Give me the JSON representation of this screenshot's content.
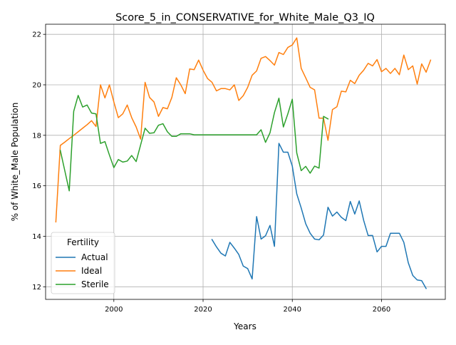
{
  "chart_data": {
    "type": "line",
    "title": "Score_5_in_CONSERVATIVE_for_White_Male_Q3_IQ",
    "xlabel": "Years",
    "ylabel": "% of White_Male Population",
    "xlim": [
      1984.7,
      2074.3
    ],
    "ylim": [
      11.5,
      22.4
    ],
    "xticks": [
      2000,
      2020,
      2040,
      2060
    ],
    "yticks": [
      12,
      14,
      16,
      18,
      20,
      22
    ],
    "grid": true,
    "legend": {
      "title": "Fertility",
      "position": "lower-left"
    },
    "series": [
      {
        "name": "Actual",
        "color": "#1f77b4",
        "points": [
          [
            2022,
            13.87
          ],
          [
            2023,
            13.58
          ],
          [
            2024,
            13.33
          ],
          [
            2025,
            13.22
          ],
          [
            2026,
            13.76
          ],
          [
            2027,
            13.53
          ],
          [
            2028,
            13.28
          ],
          [
            2029,
            12.82
          ],
          [
            2030,
            12.72
          ],
          [
            2031,
            12.31
          ],
          [
            2032,
            14.78
          ],
          [
            2033,
            13.89
          ],
          [
            2034,
            14.02
          ],
          [
            2035,
            14.43
          ],
          [
            2036,
            13.6
          ],
          [
            2037,
            17.68
          ],
          [
            2038,
            17.33
          ],
          [
            2039,
            17.33
          ],
          [
            2040,
            16.78
          ],
          [
            2041,
            15.68
          ],
          [
            2042,
            15.12
          ],
          [
            2043,
            14.5
          ],
          [
            2044,
            14.12
          ],
          [
            2045,
            13.89
          ],
          [
            2046,
            13.86
          ],
          [
            2047,
            14.05
          ],
          [
            2048,
            15.15
          ],
          [
            2049,
            14.8
          ],
          [
            2050,
            14.96
          ],
          [
            2051,
            14.75
          ],
          [
            2052,
            14.62
          ],
          [
            2053,
            15.38
          ],
          [
            2054,
            14.88
          ],
          [
            2055,
            15.4
          ],
          [
            2056,
            14.63
          ],
          [
            2057,
            14.03
          ],
          [
            2058,
            14.03
          ],
          [
            2059,
            13.38
          ],
          [
            2060,
            13.6
          ],
          [
            2061,
            13.6
          ],
          [
            2062,
            14.12
          ],
          [
            2063,
            14.12
          ],
          [
            2064,
            14.12
          ],
          [
            2065,
            13.76
          ],
          [
            2066,
            12.95
          ],
          [
            2067,
            12.45
          ],
          [
            2068,
            12.27
          ],
          [
            2069,
            12.24
          ],
          [
            2070,
            11.93
          ]
        ]
      },
      {
        "name": "Ideal",
        "color": "#ff7f0e",
        "points": [
          [
            1987,
            14.57
          ],
          [
            1988,
            17.6
          ],
          [
            1989,
            17.73
          ],
          [
            1990,
            17.87
          ],
          [
            1991,
            18.0
          ],
          [
            1992,
            18.14
          ],
          [
            1993,
            18.28
          ],
          [
            1994,
            18.42
          ],
          [
            1995,
            18.58
          ],
          [
            1996,
            18.35
          ],
          [
            1997,
            20.0
          ],
          [
            1998,
            19.48
          ],
          [
            1999,
            20.0
          ],
          [
            2000,
            19.32
          ],
          [
            2001,
            18.7
          ],
          [
            2002,
            18.85
          ],
          [
            2003,
            19.2
          ],
          [
            2004,
            18.7
          ],
          [
            2005,
            18.33
          ],
          [
            2006,
            17.85
          ],
          [
            2007,
            20.1
          ],
          [
            2008,
            19.5
          ],
          [
            2009,
            19.32
          ],
          [
            2010,
            18.75
          ],
          [
            2011,
            19.1
          ],
          [
            2012,
            19.05
          ],
          [
            2013,
            19.5
          ],
          [
            2014,
            20.28
          ],
          [
            2015,
            20.0
          ],
          [
            2016,
            19.65
          ],
          [
            2017,
            20.63
          ],
          [
            2018,
            20.6
          ],
          [
            2019,
            20.98
          ],
          [
            2020,
            20.58
          ],
          [
            2021,
            20.25
          ],
          [
            2022,
            20.1
          ],
          [
            2023,
            19.76
          ],
          [
            2024,
            19.85
          ],
          [
            2025,
            19.85
          ],
          [
            2026,
            19.8
          ],
          [
            2027,
            20.0
          ],
          [
            2028,
            19.38
          ],
          [
            2029,
            19.57
          ],
          [
            2030,
            19.9
          ],
          [
            2031,
            20.38
          ],
          [
            2032,
            20.55
          ],
          [
            2033,
            21.05
          ],
          [
            2034,
            21.12
          ],
          [
            2035,
            20.96
          ],
          [
            2036,
            20.78
          ],
          [
            2037,
            21.28
          ],
          [
            2038,
            21.2
          ],
          [
            2039,
            21.48
          ],
          [
            2040,
            21.58
          ],
          [
            2041,
            21.86
          ],
          [
            2042,
            20.65
          ],
          [
            2043,
            20.28
          ],
          [
            2044,
            19.9
          ],
          [
            2045,
            19.8
          ],
          [
            2046,
            18.68
          ],
          [
            2047,
            18.68
          ],
          [
            2048,
            17.8
          ],
          [
            2049,
            19.02
          ],
          [
            2050,
            19.13
          ],
          [
            2051,
            19.75
          ],
          [
            2052,
            19.72
          ],
          [
            2053,
            20.18
          ],
          [
            2054,
            20.05
          ],
          [
            2055,
            20.38
          ],
          [
            2056,
            20.58
          ],
          [
            2057,
            20.85
          ],
          [
            2058,
            20.75
          ],
          [
            2059,
            21.0
          ],
          [
            2060,
            20.52
          ],
          [
            2061,
            20.65
          ],
          [
            2062,
            20.45
          ],
          [
            2063,
            20.65
          ],
          [
            2064,
            20.4
          ],
          [
            2065,
            21.18
          ],
          [
            2066,
            20.6
          ],
          [
            2067,
            20.75
          ],
          [
            2068,
            20.03
          ],
          [
            2069,
            20.83
          ],
          [
            2070,
            20.5
          ],
          [
            2071,
            20.98
          ]
        ]
      },
      {
        "name": "Sterile",
        "color": "#2ca02c",
        "points": [
          [
            1988,
            17.4
          ],
          [
            1989,
            16.6
          ],
          [
            1990,
            15.8
          ],
          [
            1991,
            18.95
          ],
          [
            1992,
            19.58
          ],
          [
            1993,
            19.12
          ],
          [
            1994,
            19.2
          ],
          [
            1995,
            18.88
          ],
          [
            1996,
            18.85
          ],
          [
            1997,
            17.68
          ],
          [
            1998,
            17.75
          ],
          [
            1999,
            17.22
          ],
          [
            2000,
            16.72
          ],
          [
            2001,
            17.04
          ],
          [
            2002,
            16.94
          ],
          [
            2003,
            16.98
          ],
          [
            2004,
            17.2
          ],
          [
            2005,
            16.96
          ],
          [
            2006,
            17.62
          ],
          [
            2007,
            18.28
          ],
          [
            2008,
            18.08
          ],
          [
            2009,
            18.1
          ],
          [
            2010,
            18.4
          ],
          [
            2011,
            18.46
          ],
          [
            2012,
            18.14
          ],
          [
            2013,
            17.96
          ],
          [
            2014,
            17.96
          ],
          [
            2015,
            18.06
          ],
          [
            2016,
            18.06
          ],
          [
            2017,
            18.06
          ],
          [
            2018,
            18.02
          ],
          [
            2019,
            18.02
          ],
          [
            2020,
            18.02
          ],
          [
            2021,
            18.02
          ],
          [
            2022,
            18.02
          ],
          [
            2023,
            18.02
          ],
          [
            2024,
            18.02
          ],
          [
            2025,
            18.02
          ],
          [
            2026,
            18.02
          ],
          [
            2027,
            18.02
          ],
          [
            2028,
            18.02
          ],
          [
            2029,
            18.02
          ],
          [
            2030,
            18.02
          ],
          [
            2031,
            18.02
          ],
          [
            2032,
            18.02
          ],
          [
            2033,
            18.22
          ],
          [
            2034,
            17.72
          ],
          [
            2035,
            18.1
          ],
          [
            2036,
            18.9
          ],
          [
            2037,
            19.47
          ],
          [
            2038,
            18.33
          ],
          [
            2039,
            18.85
          ],
          [
            2040,
            19.43
          ],
          [
            2041,
            17.3
          ],
          [
            2042,
            16.6
          ],
          [
            2043,
            16.77
          ],
          [
            2044,
            16.5
          ],
          [
            2045,
            16.78
          ],
          [
            2046,
            16.7
          ],
          [
            2047,
            18.75
          ],
          [
            2048,
            18.65
          ]
        ]
      }
    ]
  }
}
